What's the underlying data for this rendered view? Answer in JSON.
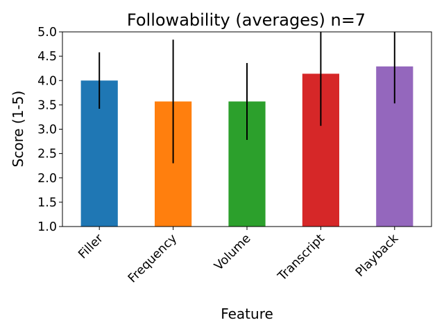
{
  "chart_data": {
    "type": "bar",
    "title": "Followability (averages) n=7",
    "xlabel": "Feature",
    "ylabel": "Score (1-5)",
    "ylim": [
      1.0,
      5.0
    ],
    "yticks": [
      "1.0",
      "1.5",
      "2.0",
      "2.5",
      "3.0",
      "3.5",
      "4.0",
      "4.5",
      "5.0"
    ],
    "categories": [
      "Filler",
      "Frequency",
      "Volume",
      "Transcript",
      "Playback"
    ],
    "values": [
      4.0,
      3.57,
      3.57,
      4.14,
      4.29
    ],
    "error": [
      0.58,
      1.27,
      0.79,
      1.07,
      0.76
    ],
    "colors": [
      "#1f77b4",
      "#ff7f0e",
      "#2ca02c",
      "#d62728",
      "#9467bd"
    ],
    "grid": false,
    "legend": "none"
  }
}
